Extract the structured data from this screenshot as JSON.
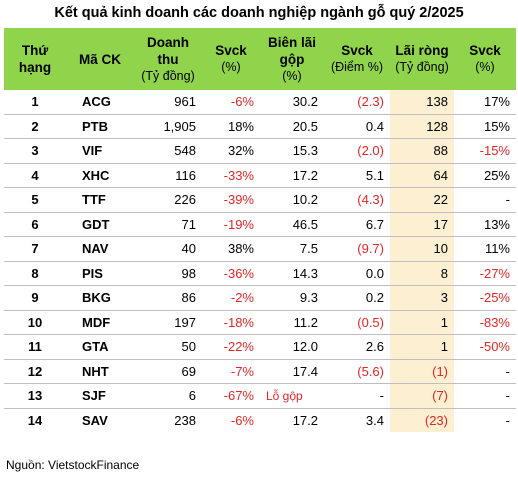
{
  "title": "Kết quả kinh doanh các doanh nghiệp ngành gỗ quý 2/2025",
  "columns": [
    {
      "label": "Thứ hạng",
      "sub": ""
    },
    {
      "label": "Mã CK",
      "sub": ""
    },
    {
      "label": "Doanh thu",
      "sub": "(Tỷ đồng)"
    },
    {
      "label": "Svck",
      "sub": "(%)"
    },
    {
      "label": "Biên lãi gộp",
      "sub": "(%)"
    },
    {
      "label": "Svck",
      "sub": "(Điểm %)"
    },
    {
      "label": "Lãi ròng",
      "sub": "(Tỷ đồng)"
    },
    {
      "label": "Svck",
      "sub": "(%)"
    }
  ],
  "rows": [
    {
      "rank": "1",
      "code": "ACG",
      "revenue": "961",
      "rev_yoy": "-6%",
      "gross_margin": "30.2",
      "gm_yoy": "(2.3)",
      "net_profit": "138",
      "np_yoy": "17%"
    },
    {
      "rank": "2",
      "code": "PTB",
      "revenue": "1,905",
      "rev_yoy": "18%",
      "gross_margin": "20.5",
      "gm_yoy": "0.4",
      "net_profit": "128",
      "np_yoy": "15%"
    },
    {
      "rank": "3",
      "code": "VIF",
      "revenue": "548",
      "rev_yoy": "32%",
      "gross_margin": "15.3",
      "gm_yoy": "(2.0)",
      "net_profit": "88",
      "np_yoy": "-15%"
    },
    {
      "rank": "4",
      "code": "XHC",
      "revenue": "116",
      "rev_yoy": "-33%",
      "gross_margin": "17.2",
      "gm_yoy": "5.1",
      "net_profit": "64",
      "np_yoy": "25%"
    },
    {
      "rank": "5",
      "code": "TTF",
      "revenue": "226",
      "rev_yoy": "-39%",
      "gross_margin": "10.2",
      "gm_yoy": "(4.3)",
      "net_profit": "22",
      "np_yoy": "-"
    },
    {
      "rank": "6",
      "code": "GDT",
      "revenue": "71",
      "rev_yoy": "-19%",
      "gross_margin": "46.5",
      "gm_yoy": "6.7",
      "net_profit": "17",
      "np_yoy": "13%"
    },
    {
      "rank": "7",
      "code": "NAV",
      "revenue": "40",
      "rev_yoy": "38%",
      "gross_margin": "7.5",
      "gm_yoy": "(9.7)",
      "net_profit": "10",
      "np_yoy": "11%"
    },
    {
      "rank": "8",
      "code": "PIS",
      "revenue": "98",
      "rev_yoy": "-36%",
      "gross_margin": "14.3",
      "gm_yoy": "0.0",
      "net_profit": "8",
      "np_yoy": "-27%"
    },
    {
      "rank": "9",
      "code": "BKG",
      "revenue": "86",
      "rev_yoy": "-2%",
      "gross_margin": "9.3",
      "gm_yoy": "0.2",
      "net_profit": "3",
      "np_yoy": "-25%"
    },
    {
      "rank": "10",
      "code": "MDF",
      "revenue": "197",
      "rev_yoy": "-18%",
      "gross_margin": "11.2",
      "gm_yoy": "(0.5)",
      "net_profit": "1",
      "np_yoy": "-83%"
    },
    {
      "rank": "11",
      "code": "GTA",
      "revenue": "50",
      "rev_yoy": "-22%",
      "gross_margin": "12.0",
      "gm_yoy": "2.6",
      "net_profit": "1",
      "np_yoy": "-50%"
    },
    {
      "rank": "12",
      "code": "NHT",
      "revenue": "69",
      "rev_yoy": "-7%",
      "gross_margin": "17.4",
      "gm_yoy": "(5.6)",
      "net_profit": "(1)",
      "np_yoy": "-"
    },
    {
      "rank": "13",
      "code": "SJF",
      "revenue": "6",
      "rev_yoy": "-67%",
      "gross_margin": "Lỗ gộp",
      "gm_yoy": "-",
      "net_profit": "(7)",
      "np_yoy": "-"
    },
    {
      "rank": "14",
      "code": "SAV",
      "revenue": "238",
      "rev_yoy": "-6%",
      "gross_margin": "17.2",
      "gm_yoy": "3.4",
      "net_profit": "(23)",
      "np_yoy": "-"
    }
  ],
  "source": "Nguồn: VietstockFinance",
  "colors": {
    "header_bg": "#8fd44a",
    "highlight_bg": "#fdf0d2",
    "negative": "#e32626"
  }
}
